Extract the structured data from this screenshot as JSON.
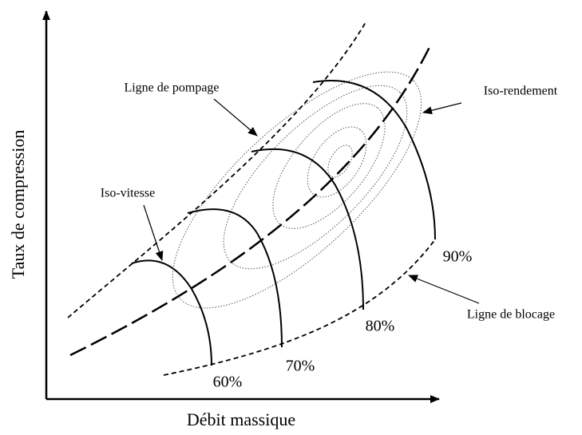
{
  "axes": {
    "x_label": "Débit massique",
    "y_label": "Taux de compression"
  },
  "annotations": {
    "surge_line": "Ligne de pompage",
    "efficiency": "Iso-rendement",
    "speed": "Iso-vitesse",
    "choke_line": "Ligne de blocage"
  },
  "speed_lines": [
    {
      "label": "60%"
    },
    {
      "label": "70%"
    },
    {
      "label": "80%"
    },
    {
      "label": "90%"
    }
  ]
}
